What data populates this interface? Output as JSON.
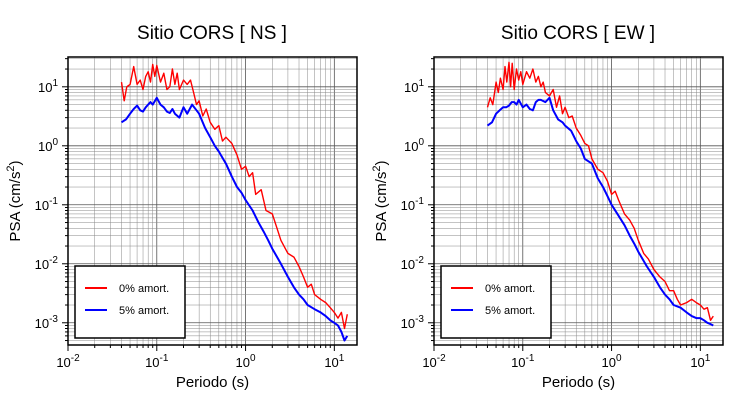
{
  "chart_data": [
    {
      "type": "line",
      "title": "Sitio CORS [ NS ]",
      "xlabel": "Periodo (s)",
      "ylabel_main": "PSA (cm/s",
      "ylabel_sup": "2",
      "ylabel_end": ")",
      "xscale": "log",
      "yscale": "log",
      "xlim": [
        0.01,
        18
      ],
      "ylim": [
        0.00042,
        32
      ],
      "grid": true,
      "legend_position": "bottom-left",
      "x_ticks": [
        {
          "base": "10",
          "exp": "-2"
        },
        {
          "base": "10",
          "exp": "-1"
        },
        {
          "base": "10",
          "exp": "0"
        },
        {
          "base": "10",
          "exp": "1"
        }
      ],
      "y_ticks": [
        {
          "base": "10",
          "exp": "1"
        },
        {
          "base": "10",
          "exp": "0"
        },
        {
          "base": "10",
          "exp": "-1"
        },
        {
          "base": "10",
          "exp": "-2"
        },
        {
          "base": "10",
          "exp": "-3"
        }
      ],
      "series": [
        {
          "name": "0% amort.",
          "color": "#ff0000",
          "x": [
            0.04,
            0.043,
            0.046,
            0.05,
            0.055,
            0.06,
            0.065,
            0.07,
            0.075,
            0.08,
            0.085,
            0.09,
            0.095,
            0.1,
            0.11,
            0.12,
            0.13,
            0.14,
            0.15,
            0.16,
            0.17,
            0.18,
            0.2,
            0.22,
            0.24,
            0.26,
            0.28,
            0.3,
            0.33,
            0.36,
            0.4,
            0.45,
            0.5,
            0.55,
            0.6,
            0.7,
            0.8,
            0.9,
            1.0,
            1.1,
            1.2,
            1.3,
            1.5,
            1.7,
            2.0,
            2.2,
            2.5,
            3.0,
            3.5,
            4.0,
            4.5,
            5.0,
            5.5,
            6.0,
            7.0,
            8.0,
            9.0,
            10.0,
            11.0,
            12.0,
            13.0,
            14.0
          ],
          "y": [
            12,
            5.8,
            10,
            11,
            22,
            11,
            13,
            9,
            15,
            18,
            12,
            24,
            15,
            23,
            12,
            17,
            9,
            10,
            20,
            11,
            17,
            9,
            13,
            11,
            13,
            8,
            5,
            5.8,
            3.2,
            4.2,
            2.5,
            1.9,
            2.2,
            1.2,
            1.4,
            1.1,
            0.7,
            0.4,
            0.45,
            0.3,
            0.35,
            0.15,
            0.18,
            0.08,
            0.07,
            0.045,
            0.025,
            0.015,
            0.013,
            0.009,
            0.006,
            0.004,
            0.0045,
            0.003,
            0.0025,
            0.0022,
            0.0018,
            0.0015,
            0.0012,
            0.0015,
            0.0008,
            0.0014
          ]
        },
        {
          "name": "5% amort.",
          "color": "#0000ff",
          "x": [
            0.04,
            0.045,
            0.05,
            0.055,
            0.06,
            0.065,
            0.07,
            0.075,
            0.08,
            0.085,
            0.09,
            0.1,
            0.11,
            0.12,
            0.13,
            0.14,
            0.15,
            0.16,
            0.18,
            0.2,
            0.22,
            0.25,
            0.28,
            0.3,
            0.35,
            0.4,
            0.45,
            0.5,
            0.6,
            0.7,
            0.8,
            0.9,
            1.0,
            1.2,
            1.4,
            1.6,
            1.8,
            2.0,
            2.5,
            3.0,
            3.5,
            4.0,
            4.5,
            5.0,
            6.0,
            7.0,
            8.0,
            9.0,
            10.0,
            11.0,
            12.0,
            13.0,
            14.0
          ],
          "y": [
            2.5,
            2.8,
            3.5,
            4.2,
            4.8,
            4.0,
            3.8,
            4.5,
            5.0,
            5.5,
            5.0,
            6.5,
            5.0,
            4.5,
            3.8,
            3.6,
            4.2,
            3.5,
            3.0,
            4.5,
            3.5,
            5.0,
            4.0,
            3.5,
            2.0,
            1.4,
            1.0,
            0.8,
            0.5,
            0.3,
            0.2,
            0.16,
            0.12,
            0.08,
            0.05,
            0.035,
            0.025,
            0.018,
            0.01,
            0.006,
            0.004,
            0.003,
            0.0025,
            0.002,
            0.0017,
            0.0015,
            0.0013,
            0.0011,
            0.001,
            0.0009,
            0.0007,
            0.0005,
            0.0006
          ]
        }
      ]
    },
    {
      "type": "line",
      "title": "Sitio CORS [ EW ]",
      "xlabel": "Periodo (s)",
      "ylabel_main": "PSA (cm/s",
      "ylabel_sup": "2",
      "ylabel_end": ")",
      "xscale": "log",
      "yscale": "log",
      "xlim": [
        0.01,
        18
      ],
      "ylim": [
        0.00042,
        32
      ],
      "grid": true,
      "legend_position": "bottom-left",
      "x_ticks": [
        {
          "base": "10",
          "exp": "-2"
        },
        {
          "base": "10",
          "exp": "-1"
        },
        {
          "base": "10",
          "exp": "0"
        },
        {
          "base": "10",
          "exp": "1"
        }
      ],
      "y_ticks": [
        {
          "base": "10",
          "exp": "1"
        },
        {
          "base": "10",
          "exp": "0"
        },
        {
          "base": "10",
          "exp": "-1"
        },
        {
          "base": "10",
          "exp": "-2"
        },
        {
          "base": "10",
          "exp": "-3"
        }
      ],
      "series": [
        {
          "name": "0% amort.",
          "color": "#ff0000",
          "x": [
            0.04,
            0.043,
            0.046,
            0.05,
            0.053,
            0.056,
            0.06,
            0.063,
            0.066,
            0.07,
            0.073,
            0.076,
            0.08,
            0.085,
            0.09,
            0.095,
            0.1,
            0.11,
            0.12,
            0.13,
            0.14,
            0.15,
            0.16,
            0.17,
            0.18,
            0.2,
            0.22,
            0.24,
            0.26,
            0.28,
            0.3,
            0.33,
            0.36,
            0.4,
            0.45,
            0.5,
            0.55,
            0.6,
            0.7,
            0.8,
            0.9,
            1.0,
            1.1,
            1.2,
            1.4,
            1.6,
            1.8,
            2.0,
            2.3,
            2.6,
            3.0,
            3.5,
            4.0,
            4.5,
            5.0,
            5.5,
            6.0,
            7.0,
            8.0,
            9.0,
            10.0,
            11.0,
            12.0,
            13.0,
            14.0
          ],
          "y": [
            4.5,
            6.5,
            5.0,
            12,
            8,
            14,
            9,
            22,
            12,
            26,
            10,
            25,
            9,
            20,
            13,
            18,
            11,
            18,
            14,
            20,
            12,
            15,
            10,
            12,
            8,
            7,
            9,
            4.5,
            7,
            3.5,
            4.5,
            3.0,
            3.2,
            2.0,
            1.5,
            1.1,
            1.0,
            0.6,
            0.4,
            0.35,
            0.25,
            0.15,
            0.17,
            0.12,
            0.07,
            0.055,
            0.04,
            0.025,
            0.015,
            0.012,
            0.008,
            0.006,
            0.005,
            0.0035,
            0.0035,
            0.0025,
            0.002,
            0.0022,
            0.0025,
            0.0022,
            0.002,
            0.0017,
            0.0018,
            0.0011,
            0.0013
          ]
        },
        {
          "name": "5% amort.",
          "color": "#0000ff",
          "x": [
            0.04,
            0.045,
            0.05,
            0.055,
            0.06,
            0.065,
            0.07,
            0.075,
            0.08,
            0.085,
            0.09,
            0.1,
            0.11,
            0.12,
            0.13,
            0.14,
            0.15,
            0.16,
            0.18,
            0.2,
            0.22,
            0.25,
            0.28,
            0.3,
            0.35,
            0.4,
            0.45,
            0.5,
            0.6,
            0.7,
            0.8,
            0.9,
            1.0,
            1.2,
            1.4,
            1.6,
            1.8,
            2.0,
            2.5,
            3.0,
            3.5,
            4.0,
            4.5,
            5.0,
            6.0,
            7.0,
            8.0,
            9.0,
            10.0,
            11.0,
            12.0,
            13.0,
            14.0
          ],
          "y": [
            2.2,
            2.5,
            3.5,
            4.0,
            4.5,
            4.5,
            4.8,
            5.5,
            5.5,
            5.0,
            6.0,
            4.5,
            5.0,
            4.2,
            4.0,
            5.5,
            6.0,
            6.0,
            5.5,
            6.5,
            4.0,
            2.8,
            2.5,
            2.2,
            1.8,
            1.2,
            0.9,
            0.6,
            0.5,
            0.28,
            0.2,
            0.14,
            0.1,
            0.065,
            0.045,
            0.03,
            0.022,
            0.016,
            0.009,
            0.006,
            0.004,
            0.003,
            0.0025,
            0.002,
            0.0018,
            0.0015,
            0.0013,
            0.0012,
            0.0012,
            0.0011,
            0.001,
            0.00095,
            0.0009
          ]
        }
      ]
    }
  ]
}
